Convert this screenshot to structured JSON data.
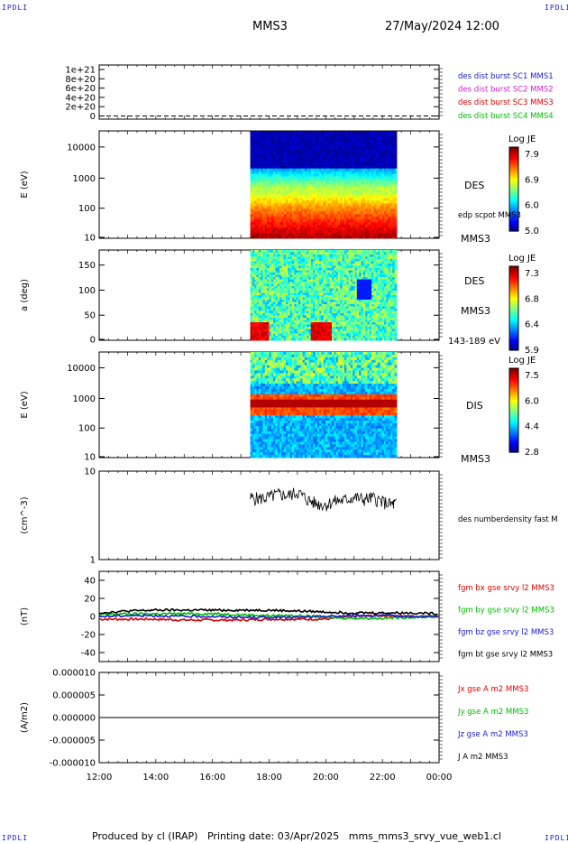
{
  "header": {
    "corner_label": "IPDLI",
    "spacecraft": "MMS3",
    "datetime": "27/May/2024 12:00"
  },
  "footer": {
    "credit": "Produced by cl (IRAP)",
    "printing": "Printing date: 03/Apr/2025",
    "filename": "mms_mms3_srvy_vue_web1.cl"
  },
  "colors": {
    "mms1": "#1a1acc",
    "mms2": "#cc22cc",
    "mms3": "#dd0000",
    "mms4": "#00bb00",
    "bx": "#dd0000",
    "by": "#00bb00",
    "bz": "#1a1acc",
    "bt": "#000000"
  },
  "chart_data": [
    {
      "type": "line",
      "id": "dist-burst",
      "ylabel": "",
      "yticks": [
        "1e+21",
        "8e+20",
        "6e+20",
        "4e+20",
        "2e+20",
        "0"
      ],
      "ylim": [
        0,
        1.1e+21
      ],
      "baseline": 0,
      "legend": [
        {
          "name": "des dist burst SC1 MMS1",
          "color": "#1a1acc"
        },
        {
          "name": "des dist burst SC2 MMS2",
          "color": "#cc22cc"
        },
        {
          "name": "des dist burst SC3 MMS3",
          "color": "#dd0000"
        },
        {
          "name": "des dist burst SC4 MMS4",
          "color": "#00bb00"
        }
      ]
    },
    {
      "type": "heatmap",
      "id": "des-energy",
      "ylabel": "E (eV)",
      "yscale": "log",
      "yticks": [
        "10000",
        "1000",
        "100",
        "10"
      ],
      "right_labels": [
        "DES",
        "edp scpot MMS3",
        "MMS3"
      ],
      "colorbar": {
        "title": "Log JE",
        "ticks": [
          "7.9",
          "6.9",
          "6.0",
          "5.0"
        ],
        "range": [
          5.0,
          7.9
        ]
      },
      "data_x_start": "17:20",
      "data_x_end": "22:30"
    },
    {
      "type": "heatmap",
      "id": "des-pitch",
      "ylabel": "a (deg)",
      "ylim": [
        0,
        180
      ],
      "yticks": [
        "150",
        "100",
        "50",
        "0"
      ],
      "right_labels": [
        "DES",
        "MMS3",
        "143-189 eV"
      ],
      "colorbar": {
        "title": "Log JE",
        "ticks": [
          "7.3",
          "6.8",
          "6.4",
          "5.9"
        ],
        "range": [
          5.9,
          7.3
        ]
      },
      "data_x_start": "17:20",
      "data_x_end": "22:30"
    },
    {
      "type": "heatmap",
      "id": "dis-energy",
      "ylabel": "E (eV)",
      "yscale": "log",
      "yticks": [
        "10000",
        "1000",
        "100",
        "10"
      ],
      "right_labels": [
        "DIS",
        "MMS3"
      ],
      "colorbar": {
        "title": "Log JE",
        "ticks": [
          "7.5",
          "6.0",
          "4.4",
          "2.8"
        ],
        "range": [
          2.8,
          7.5
        ]
      },
      "data_x_start": "17:20",
      "data_x_end": "22:30"
    },
    {
      "type": "line",
      "id": "density",
      "ylabel": "(cm^-3)",
      "yscale": "log",
      "ylim": [
        1,
        10
      ],
      "yticks": [
        "10",
        "1"
      ],
      "series": [
        {
          "name": "des numberdensity fast M",
          "color": "#000000",
          "x": [
            "17:20",
            "17:40",
            "18:00",
            "18:20",
            "18:40",
            "19:00",
            "19:20",
            "19:40",
            "20:00",
            "20:20",
            "20:40",
            "21:00",
            "21:20",
            "21:40",
            "22:00",
            "22:20",
            "22:30"
          ],
          "values": [
            5.0,
            4.9,
            5.1,
            5.5,
            5.3,
            5.8,
            4.8,
            4.3,
            4.2,
            4.6,
            4.7,
            5.1,
            4.8,
            5.0,
            4.5,
            4.2,
            4.3
          ]
        }
      ]
    },
    {
      "type": "line",
      "id": "bfield",
      "ylabel": "(nT)",
      "ylim": [
        -50,
        50
      ],
      "yticks": [
        "40",
        "20",
        "0",
        "-20",
        "-40"
      ],
      "series": [
        {
          "name": "fgm bx gse srvy l2 MMS3",
          "color": "#dd0000",
          "x": [
            "12:00",
            "13:00",
            "14:00",
            "15:00",
            "16:00",
            "17:00",
            "18:00",
            "19:00",
            "20:00",
            "21:00",
            "22:00",
            "23:00",
            "24:00"
          ],
          "values": [
            -3,
            -3,
            -3,
            -4,
            -4,
            -4,
            -3,
            -3,
            -3,
            0,
            1,
            0,
            0
          ]
        },
        {
          "name": "fgm by gse srvy l2 MMS3",
          "color": "#00bb00",
          "x": [
            "12:00",
            "13:00",
            "14:00",
            "15:00",
            "16:00",
            "17:00",
            "18:00",
            "19:00",
            "20:00",
            "21:00",
            "22:00",
            "23:00",
            "24:00"
          ],
          "values": [
            2,
            3,
            3,
            3,
            3,
            2,
            1,
            1,
            -1,
            -2,
            -2,
            -1,
            0
          ]
        },
        {
          "name": "fgm bz gse srvy l2 MMS3",
          "color": "#1a1acc",
          "x": [
            "12:00",
            "13:00",
            "14:00",
            "15:00",
            "16:00",
            "17:00",
            "18:00",
            "19:00",
            "20:00",
            "21:00",
            "22:00",
            "23:00",
            "24:00"
          ],
          "values": [
            0,
            1,
            1,
            0,
            0,
            -1,
            -1,
            -1,
            0,
            1,
            1,
            0,
            0
          ]
        },
        {
          "name": "fgm bt gse srvy l2 MMS3",
          "color": "#000000",
          "x": [
            "12:00",
            "13:00",
            "14:00",
            "15:00",
            "16:00",
            "17:00",
            "18:00",
            "19:00",
            "20:00",
            "21:00",
            "22:00",
            "23:00",
            "24:00"
          ],
          "values": [
            4,
            6,
            7,
            7,
            7,
            7,
            7,
            6,
            5,
            4,
            4,
            4,
            3
          ]
        }
      ]
    },
    {
      "type": "line",
      "id": "current",
      "ylabel": "(A/m2)",
      "ylim": [
        -1e-05,
        1e-05
      ],
      "yticks": [
        "0.000010",
        "0.000005",
        "0.000000",
        "-0.000005",
        "-0.000010"
      ],
      "series": [
        {
          "name": "Jx gse A m2 MMS3",
          "color": "#dd0000",
          "x": [
            "12:00",
            "24:00"
          ],
          "values": [
            0,
            0
          ]
        },
        {
          "name": "Jy gse A m2 MMS3",
          "color": "#00bb00",
          "x": [
            "12:00",
            "24:00"
          ],
          "values": [
            0,
            0
          ]
        },
        {
          "name": "Jz gse A m2 MMS3",
          "color": "#1a1acc",
          "x": [
            "12:00",
            "24:00"
          ],
          "values": [
            0,
            0
          ]
        },
        {
          "name": "J A m2 MMS3",
          "color": "#000000",
          "x": [
            "12:00",
            "24:00"
          ],
          "values": [
            0,
            0
          ]
        }
      ]
    }
  ],
  "time_axis": {
    "ticks": [
      "12:00",
      "14:00",
      "16:00",
      "18:00",
      "20:00",
      "22:00",
      "00:00"
    ],
    "start_hour": 12,
    "end_hour": 24
  }
}
